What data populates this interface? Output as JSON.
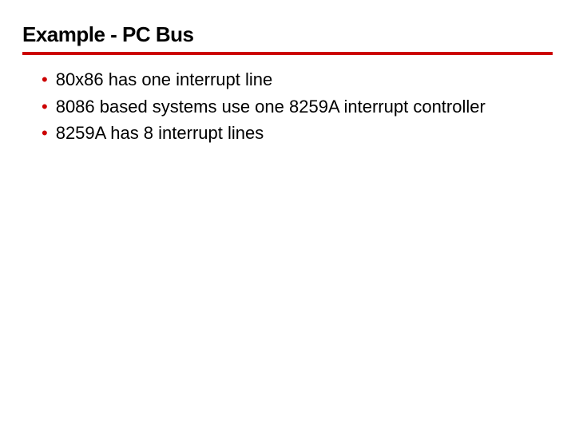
{
  "slide": {
    "title": "Example - PC Bus",
    "title_fontsize": 26,
    "title_fontweight": 900,
    "title_color": "#000000",
    "underline_color": "#cc0000",
    "underline_width": 4,
    "background_color": "#ffffff",
    "bullets": [
      {
        "text": "80x86 has one interrupt line"
      },
      {
        "text": "8086 based systems use one 8259A interrupt controller"
      },
      {
        "text": "8259A has 8 interrupt lines"
      }
    ],
    "bullet_marker": "•",
    "bullet_marker_color": "#cc0000",
    "bullet_fontsize": 22,
    "bullet_text_color": "#000000"
  }
}
